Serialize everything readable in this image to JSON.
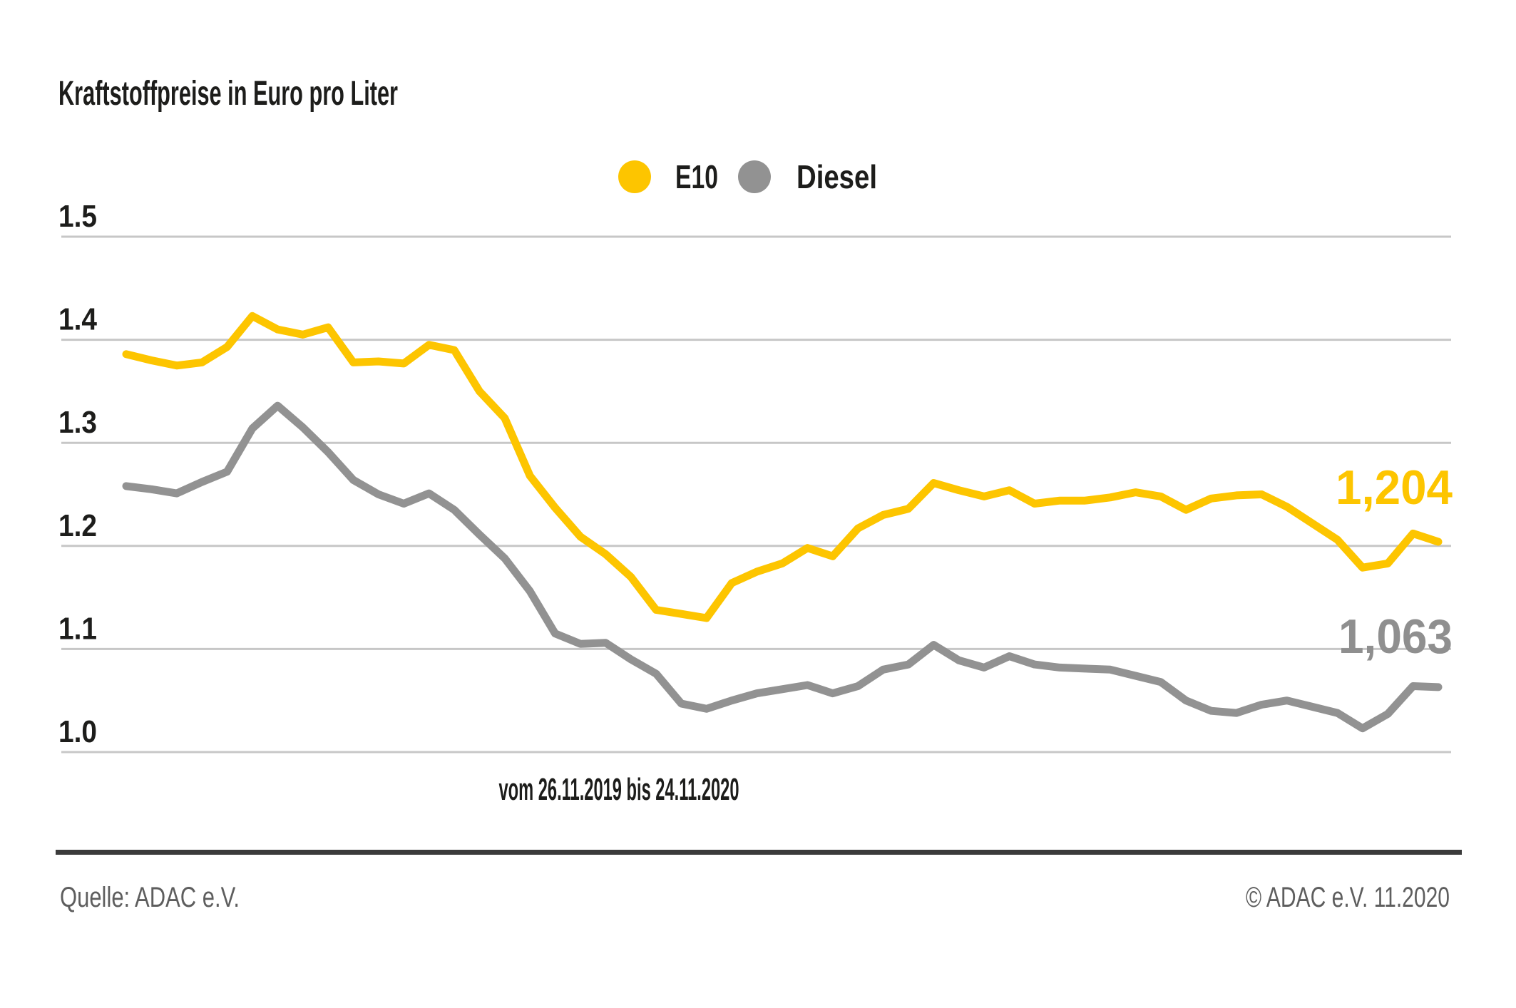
{
  "chart_data": {
    "type": "line",
    "title": "Kraftstoffpreise in Euro pro Liter",
    "x_label": "vom 26.11.2019 bis 24.11.2020",
    "ylabel": "",
    "ylim": [
      1.0,
      1.5
    ],
    "y_ticks": [
      "1.5",
      "1.4",
      "1.3",
      "1.2",
      "1.1",
      "1.0"
    ],
    "grid": true,
    "legend_position": "top-center",
    "series": [
      {
        "name": "E10",
        "color": "#FDC500",
        "end_label": "1,204",
        "values": [
          1.386,
          1.38,
          1.375,
          1.378,
          1.393,
          1.423,
          1.41,
          1.405,
          1.412,
          1.378,
          1.379,
          1.377,
          1.395,
          1.39,
          1.35,
          1.324,
          1.268,
          1.237,
          1.209,
          1.192,
          1.17,
          1.138,
          1.134,
          1.13,
          1.164,
          1.175,
          1.183,
          1.198,
          1.19,
          1.217,
          1.23,
          1.236,
          1.261,
          1.254,
          1.248,
          1.254,
          1.241,
          1.244,
          1.244,
          1.247,
          1.252,
          1.248,
          1.235,
          1.246,
          1.249,
          1.25,
          1.238,
          1.222,
          1.206,
          1.179,
          1.183,
          1.212,
          1.204
        ]
      },
      {
        "name": "Diesel",
        "color": "#929292",
        "end_label": "1,063",
        "values": [
          1.258,
          1.255,
          1.251,
          1.262,
          1.272,
          1.314,
          1.336,
          1.315,
          1.291,
          1.264,
          1.25,
          1.241,
          1.251,
          1.235,
          1.211,
          1.188,
          1.156,
          1.115,
          1.105,
          1.106,
          1.09,
          1.076,
          1.047,
          1.042,
          1.05,
          1.057,
          1.061,
          1.065,
          1.057,
          1.064,
          1.08,
          1.085,
          1.104,
          1.089,
          1.082,
          1.093,
          1.085,
          1.082,
          1.081,
          1.08,
          1.074,
          1.068,
          1.05,
          1.04,
          1.038,
          1.046,
          1.05,
          1.044,
          1.038,
          1.023,
          1.037,
          1.064,
          1.063
        ]
      }
    ]
  },
  "legend": [
    {
      "label": "E10",
      "color": "#FDC500"
    },
    {
      "label": "Diesel",
      "color": "#929292"
    }
  ],
  "footer": {
    "source": "Quelle: ADAC e.V.",
    "copyright": "© ADAC e.V. 11.2020"
  },
  "colors": {
    "gridline": "#c7c7c7",
    "footer_rule": "#3b3b3b",
    "text": "#1d1d1b",
    "footer_text": "#5e5e5e"
  }
}
